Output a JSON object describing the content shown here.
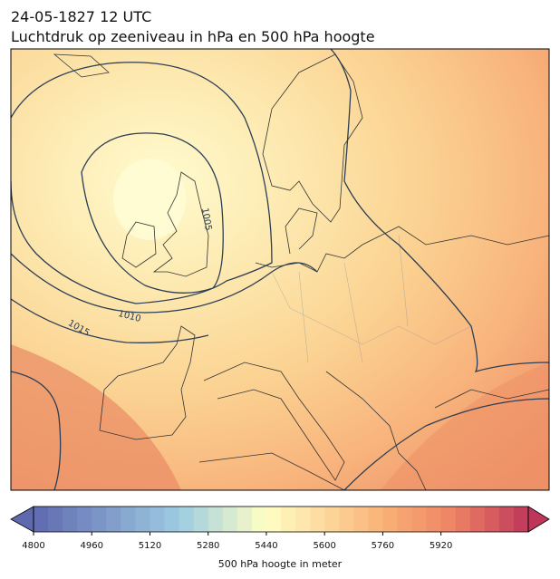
{
  "header": {
    "title": "24-05-1827 12 UTC",
    "subtitle": "Luchtdruk op zeeniveau in hPa en 500 hPa hoogte"
  },
  "map": {
    "isobar_labels": [
      1005,
      1010,
      1015
    ]
  },
  "colorbar": {
    "label": "500 hPa hoogte in meter",
    "clim": [
      4800,
      6160
    ],
    "ticks": [
      4800,
      4960,
      5120,
      5280,
      5440,
      5600,
      5760,
      5920
    ]
  }
}
